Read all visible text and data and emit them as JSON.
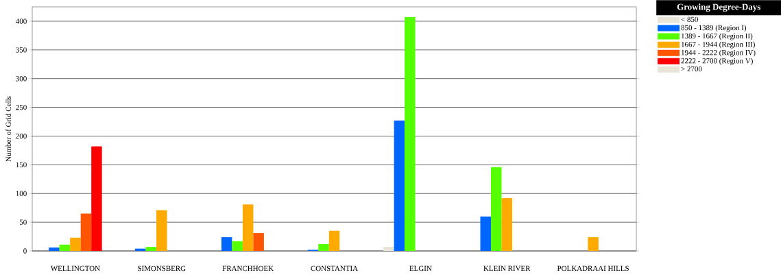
{
  "chart_data": {
    "type": "bar",
    "ylabel": "Number of Grid Cells",
    "legend_title": "Growing Degree-Days",
    "categories": [
      "WELLINGTON",
      "SIMONSBERG",
      "FRANCHHOEK",
      "CONSTANTIA",
      "ELGIN",
      "KLEIN RIVER",
      "POLKADRAAI HILLS"
    ],
    "series": [
      {
        "name": "< 850",
        "color": "#e8e4d8",
        "values": [
          0,
          0,
          0,
          0,
          7,
          0,
          0
        ]
      },
      {
        "name": "850 - 1389 (Region I)",
        "color": "#0066ff",
        "values": [
          6,
          4,
          24,
          2,
          227,
          60,
          0
        ]
      },
      {
        "name": "1389 - 1667 (Region II)",
        "color": "#55ff00",
        "values": [
          11,
          7,
          17,
          12,
          407,
          146,
          0
        ]
      },
      {
        "name": "1667 - 1944 (Region III)",
        "color": "#ffaa00",
        "values": [
          23,
          71,
          81,
          35,
          0,
          92,
          24
        ]
      },
      {
        "name": "1944 - 2222 (Region IV)",
        "color": "#ff5500",
        "values": [
          65,
          0,
          31,
          0,
          0,
          0,
          0
        ]
      },
      {
        "name": "2222 - 2700 (Region V)",
        "color": "#ff0000",
        "values": [
          182,
          0,
          0,
          0,
          0,
          0,
          0
        ]
      },
      {
        "name": "> 2700",
        "color": "#e8e4d8",
        "values": [
          0,
          0,
          0,
          0,
          0,
          0,
          0
        ]
      }
    ],
    "ylim": [
      0,
      425
    ],
    "yticks": [
      0,
      50,
      100,
      150,
      200,
      250,
      300,
      350,
      400
    ],
    "grid": "y",
    "legend": "top right"
  }
}
